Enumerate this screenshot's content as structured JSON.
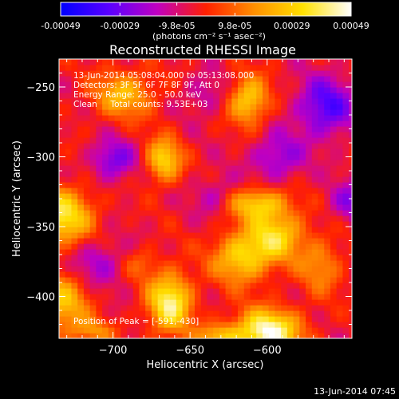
{
  "chart_data": {
    "type": "heatmap",
    "title": "Reconstructed RHESSI Image",
    "xlabel": "Heliocentric X (arcsec)",
    "ylabel": "Heliocentric Y (arcsec)",
    "xlim": [
      -735,
      -545
    ],
    "ylim": [
      -430,
      -230
    ],
    "x_ticks": [
      -700,
      -650,
      -600
    ],
    "y_ticks": [
      -250,
      -300,
      -350,
      -400
    ],
    "colorbar": {
      "range": [
        -0.00049,
        0.00049
      ],
      "tick_values": [
        -0.00049,
        -0.00029,
        -9.8e-05,
        9.8e-05,
        0.00029,
        0.00049
      ],
      "tick_labels": [
        "-0.00049",
        "-0.00029",
        "-9.8e-05",
        "9.8e-05",
        "0.00029",
        "0.00049"
      ],
      "unit_label": "(photons cm⁻² s⁻¹ asec⁻²)",
      "colors": [
        "#0000ff",
        "#5a00ff",
        "#c000c0",
        "#ff2000",
        "#ff9000",
        "#ffe000",
        "#ffffff"
      ]
    },
    "annotations": [
      "13-Jun-2014 05:08:04.000 to 05:13:08.000",
      "Detectors: 3F 5F 6F 7F 8F 9F, Att 0",
      "Energy Range: 25.0 - 50.0 keV",
      "Clean     Total counts: 9.53E+03",
      "Position of Peak = [-591,-430]"
    ],
    "background_level": -4e-05,
    "noise_amplitude": 5e-05,
    "sources": [
      {
        "x": -600,
        "y": -425,
        "sx": 15,
        "sy": 11,
        "amp": 0.00052
      },
      {
        "x": -617,
        "y": -372,
        "sx": 13,
        "sy": 13,
        "amp": 0.00034
      },
      {
        "x": -594,
        "y": -356,
        "sx": 13,
        "sy": 13,
        "amp": 0.00034
      },
      {
        "x": -607,
        "y": -333,
        "sx": 14,
        "sy": 8,
        "amp": 0.00032
      },
      {
        "x": -663,
        "y": -404,
        "sx": 10,
        "sy": 15,
        "amp": 0.00045
      },
      {
        "x": -667,
        "y": -302,
        "sx": 8,
        "sy": 11,
        "amp": 0.00035
      },
      {
        "x": -693,
        "y": -255,
        "sx": 14,
        "sy": 12,
        "amp": 0.00028
      },
      {
        "x": -612,
        "y": -259,
        "sx": 9,
        "sy": 12,
        "amp": 0.00035
      },
      {
        "x": -733,
        "y": -342,
        "sx": 14,
        "sy": 14,
        "amp": 0.0004
      },
      {
        "x": -733,
        "y": -405,
        "sx": 12,
        "sy": 15,
        "amp": 0.0003
      },
      {
        "x": -632,
        "y": -428,
        "sx": 10,
        "sy": 6,
        "amp": 0.00025
      },
      {
        "x": -713,
        "y": -425,
        "sx": 10,
        "sy": 6,
        "amp": 0.00018
      },
      {
        "x": -565,
        "y": -378,
        "sx": 10,
        "sy": 14,
        "amp": 0.0002
      },
      {
        "x": -682,
        "y": -376,
        "sx": 8,
        "sy": 8,
        "amp": 0.00012
      },
      {
        "x": -700,
        "y": -302,
        "sx": 10,
        "sy": 10,
        "amp": -0.00024
      },
      {
        "x": -562,
        "y": -264,
        "sx": 13,
        "sy": 15,
        "amp": -0.0003
      },
      {
        "x": -593,
        "y": -300,
        "sx": 12,
        "sy": 12,
        "amp": -0.0002
      },
      {
        "x": -710,
        "y": -375,
        "sx": 12,
        "sy": 12,
        "amp": -0.00016
      },
      {
        "x": -545,
        "y": -332,
        "sx": 10,
        "sy": 10,
        "amp": -0.0002
      },
      {
        "x": -633,
        "y": -328,
        "sx": 10,
        "sy": 10,
        "amp": -0.00014
      },
      {
        "x": -640,
        "y": -255,
        "sx": 10,
        "sy": 10,
        "amp": -0.00012
      }
    ]
  },
  "footer": {
    "timestamp": "13-Jun-2014 07:45"
  }
}
